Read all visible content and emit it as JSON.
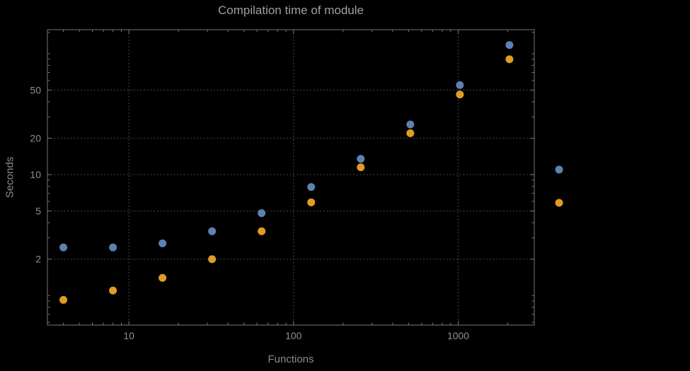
{
  "page": {
    "background": "#000000"
  },
  "chart_data": {
    "type": "scatter",
    "title": "Compilation time of module",
    "xlabel": "Functions",
    "ylabel": "Seconds",
    "x_scale": "log",
    "y_scale": "log",
    "grid": "dotted",
    "legend_position": "right-outside",
    "xlim": [
      3.2,
      2900
    ],
    "ylim": [
      0.57,
      158
    ],
    "x_gridlines": [
      10,
      100,
      1000
    ],
    "x_tick_labels": [
      "10",
      "100",
      "1000"
    ],
    "x_minor_ticks": [
      4,
      5,
      6,
      7,
      8,
      9,
      20,
      30,
      40,
      50,
      60,
      70,
      80,
      90,
      200,
      300,
      400,
      500,
      600,
      700,
      800,
      900,
      2000
    ],
    "y_gridlines": [
      2,
      5,
      10,
      20,
      50
    ],
    "y_tick_labels": [
      "2",
      "5",
      "10",
      "20",
      "50"
    ],
    "y_minor_ticks": [
      0.6,
      0.7,
      0.8,
      0.9,
      1,
      3,
      4,
      6,
      7,
      8,
      9,
      30,
      40,
      60,
      70,
      80,
      90,
      100,
      150
    ],
    "x": [
      4,
      8,
      16,
      32,
      64,
      128,
      256,
      512,
      1024,
      2048
    ],
    "series": [
      {
        "name": "blue",
        "color": "#5e81b5",
        "marker": "disk",
        "values": [
          2.5,
          2.5,
          2.7,
          3.4,
          4.8,
          7.9,
          13.5,
          26,
          55,
          118
        ]
      },
      {
        "name": "orange",
        "color": "#e09c24",
        "marker": "disk",
        "values": [
          0.92,
          1.1,
          1.4,
          2.0,
          3.4,
          5.9,
          11.5,
          22,
          46,
          90
        ]
      }
    ],
    "legend_markers": [
      {
        "series": "blue",
        "color": "#5e81b5"
      },
      {
        "series": "orange",
        "color": "#e09c24"
      }
    ]
  },
  "colors": {
    "background": "#000000",
    "frame": "#767676",
    "grid": "#5f5f5f",
    "title_text": "#9e9e9e",
    "axis_text": "#8a8a8a",
    "series_blue": "#5e81b5",
    "series_orange": "#e09c24"
  }
}
